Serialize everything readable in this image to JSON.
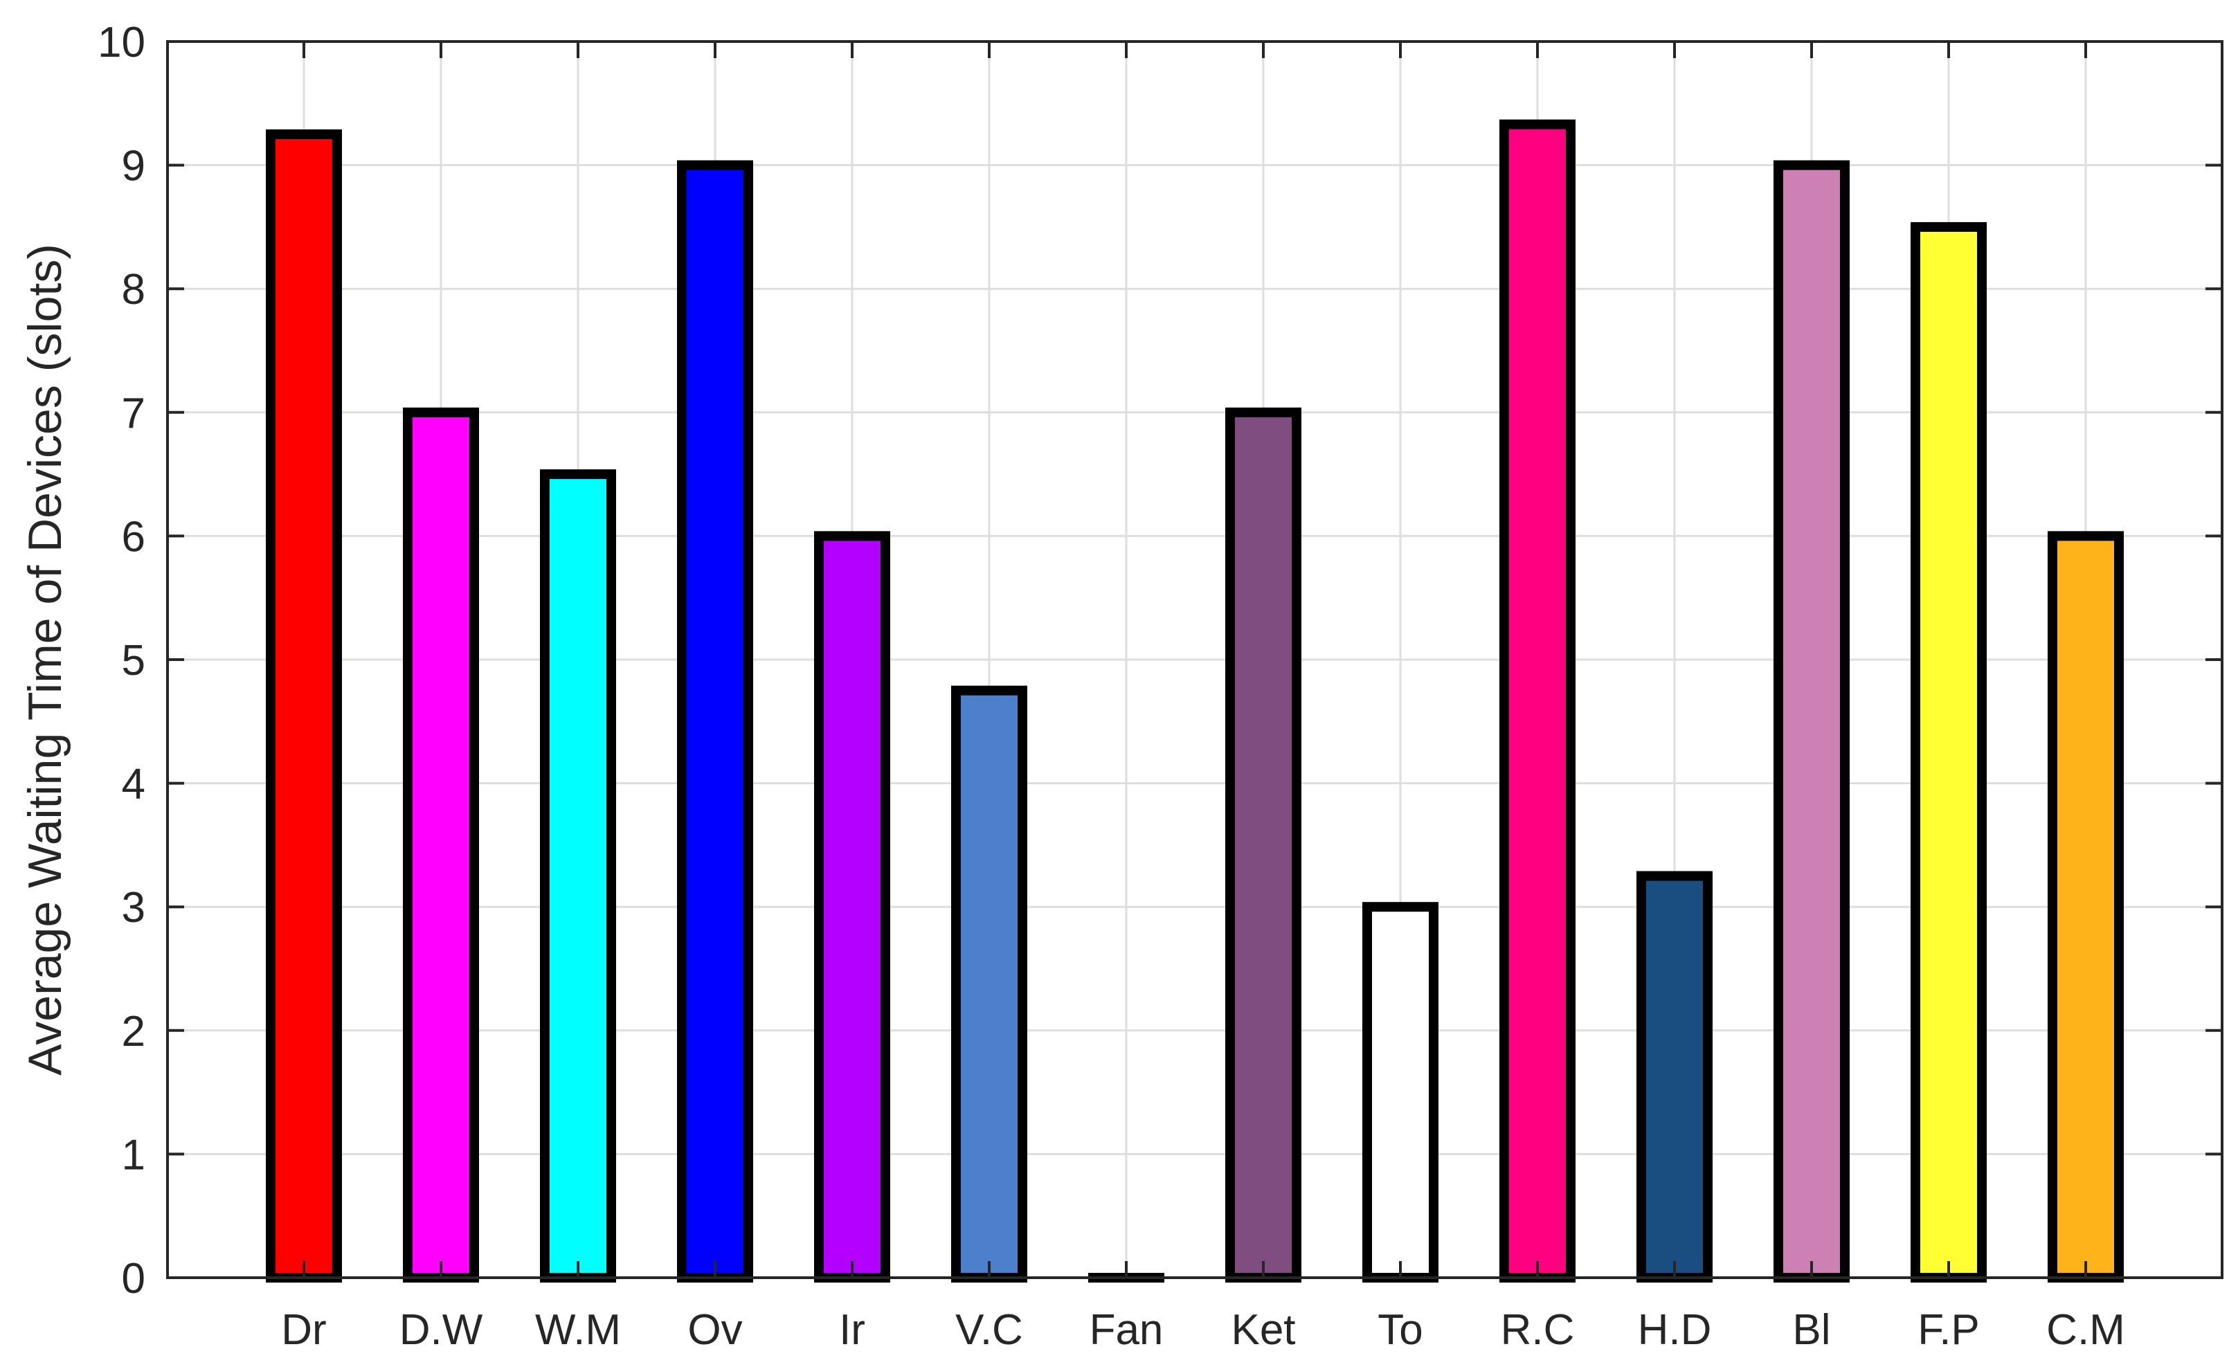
{
  "chart_data": {
    "type": "bar",
    "title": "",
    "xlabel": "",
    "ylabel": "Average Waiting Time of Devices (slots)",
    "ylim": [
      0,
      10
    ],
    "yticks": [
      0,
      1,
      2,
      3,
      4,
      5,
      6,
      7,
      8,
      9,
      10
    ],
    "grid": true,
    "categories": [
      "Dr",
      "D.W",
      "W.M",
      "Ov",
      "Ir",
      "V.C",
      "Fan",
      "Ket",
      "To",
      "R.C",
      "H.D",
      "Bl",
      "F.P",
      "C.M"
    ],
    "values": [
      9.25,
      7,
      6.5,
      9,
      6,
      4.75,
      0,
      7,
      3,
      9.33,
      3.25,
      9,
      8.5,
      6
    ],
    "colors": [
      "#ff0000",
      "#ff00ff",
      "#00ffff",
      "#0000ff",
      "#b300ff",
      "#4d80cc",
      "#ffffff",
      "#804d80",
      "#ffffff",
      "#ff0080",
      "#1a4d80",
      "#cc80b3",
      "#ffff33",
      "#ffb31a"
    ],
    "bar_edge_color": "#000000"
  }
}
